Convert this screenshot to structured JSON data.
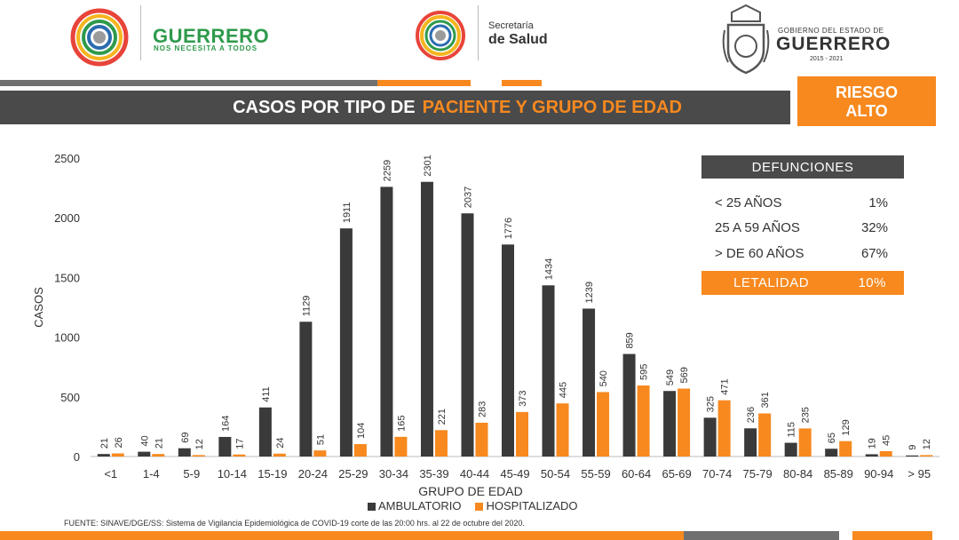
{
  "header": {
    "logo1_title": "GUERRERO",
    "logo1_subtitle": "NOS NECESITA A TODOS",
    "logo2_line1": "Secretaría",
    "logo2_line2": "de Salud",
    "logo3_line1": "GOBIERNO DEL ESTADO DE",
    "logo3_line2": "GUERRERO",
    "logo3_line3": "2015 - 2021"
  },
  "title": {
    "part1": "CASOS POR TIPO DE",
    "part2": "PACIENTE Y GRUPO DE EDAD"
  },
  "risk": {
    "line1": "RIESGO",
    "line2": "ALTO"
  },
  "defunciones": {
    "header": "DEFUNCIONES",
    "rows": [
      {
        "label": "< 25 AÑOS",
        "value": "1%"
      },
      {
        "label": "25 A 59 AÑOS",
        "value": "32%"
      },
      {
        "label": "> DE 60 AÑOS",
        "value": "67%"
      }
    ],
    "letalidad_label": "LETALIDAD",
    "letalidad_value": "10%"
  },
  "colors": {
    "ambulatorio": "#3a3a3a",
    "hospitalizado": "#f7891f",
    "title_bar": "#4a4a4a"
  },
  "chart_data": {
    "type": "bar",
    "categories": [
      "<1",
      "1-4",
      "5-9",
      "10-14",
      "15-19",
      "20-24",
      "25-29",
      "30-34",
      "35-39",
      "40-44",
      "45-49",
      "50-54",
      "55-59",
      "60-64",
      "65-69",
      "70-74",
      "75-79",
      "80-84",
      "85-89",
      "90-94",
      "> 95"
    ],
    "series": [
      {
        "name": "AMBULATORIO",
        "values": [
          21,
          40,
          69,
          164,
          411,
          1129,
          1911,
          2259,
          2301,
          2037,
          1776,
          1434,
          1239,
          859,
          549,
          325,
          236,
          115,
          65,
          19,
          9
        ]
      },
      {
        "name": "HOSPITALIZADO",
        "values": [
          26,
          21,
          12,
          17,
          24,
          51,
          104,
          165,
          221,
          283,
          373,
          445,
          540,
          595,
          569,
          471,
          361,
          235,
          129,
          45,
          12
        ]
      }
    ],
    "xlabel": "GRUPO DE EDAD",
    "ylabel": "CASOS",
    "ylim": [
      0,
      2500
    ],
    "yticks": [
      0,
      500,
      1000,
      1500,
      2000,
      2500
    ],
    "legend_position": "bottom"
  },
  "source": "FUENTE: SINAVE/DGE/SS: Sistema de Vigilancia Epidemiológica de COVID-19 corte de las 20:00 hrs. al 22 de octubre del 2020."
}
